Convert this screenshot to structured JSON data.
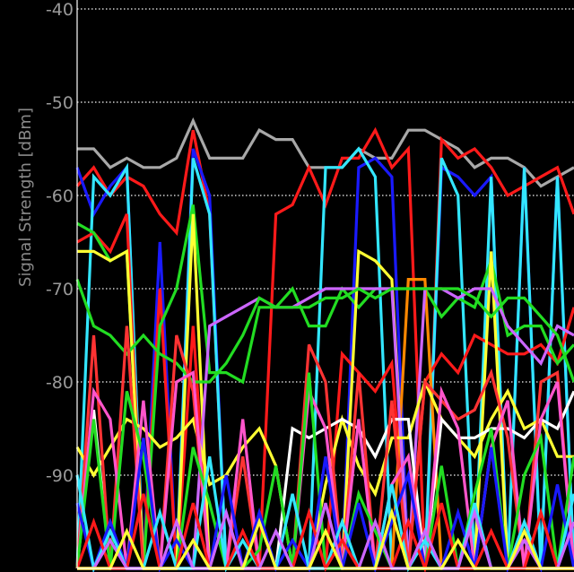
{
  "chart_data": {
    "type": "line",
    "title": "",
    "ylabel": "Signal Strength [dBm]",
    "xlabel": "",
    "ylim": [
      -100,
      -40
    ],
    "yticks": [
      -40,
      -50,
      -60,
      -70,
      -80,
      -90
    ],
    "grid": true,
    "background": "#000000",
    "gridColor": "#cfcfcf",
    "x": [
      0,
      1,
      2,
      3,
      4,
      5,
      6,
      7,
      8,
      9,
      10,
      11,
      12,
      13,
      14,
      15,
      16,
      17,
      18,
      19,
      20,
      21,
      22,
      23,
      24,
      25,
      26,
      27,
      28,
      29,
      30
    ],
    "series": [
      {
        "color": "#a8a8a8",
        "values": [
          -55,
          -55,
          -57,
          -56,
          -57,
          -57,
          -56,
          -52,
          -56,
          -56,
          -56,
          -53,
          -54,
          -54,
          -57,
          -57,
          -57,
          -55,
          -56,
          -56,
          -53,
          -53,
          -54,
          -55,
          -57,
          -56,
          -56,
          -57,
          -59,
          -58,
          -57
        ]
      },
      {
        "color": "#ff1a1a",
        "values": [
          -59,
          -57,
          -60,
          -58,
          -59,
          -62,
          -64,
          -53,
          -62,
          -100,
          -100,
          -100,
          -62,
          -61,
          -57,
          -61,
          -56,
          -56,
          -53,
          -57,
          -55,
          -100,
          -54,
          -56,
          -55,
          -57,
          -60,
          -59,
          -58,
          -57,
          -62
        ]
      },
      {
        "color": "#1a1aff",
        "values": [
          -57,
          -62,
          -59,
          -57,
          -100,
          -65,
          -100,
          -55,
          -60,
          -100,
          -100,
          -100,
          -100,
          -100,
          -100,
          -100,
          -100,
          -57,
          -56,
          -58,
          -100,
          -100,
          -57,
          -58,
          -60,
          -58,
          -100,
          -57,
          -100,
          -58,
          -100
        ]
      },
      {
        "color": "#33e6ff",
        "values": [
          -100,
          -58,
          -60,
          -57,
          -100,
          -100,
          -100,
          -56,
          -62,
          -100,
          -100,
          -100,
          -100,
          -100,
          -100,
          -57,
          -57,
          -55,
          -58,
          -100,
          -100,
          -100,
          -56,
          -60,
          -100,
          -58,
          -100,
          -57,
          -100,
          -58,
          -100
        ]
      },
      {
        "color": "#ff1a1a",
        "values": [
          -65,
          -64,
          -66,
          -62,
          -100,
          -70,
          -100,
          -74,
          -100,
          -100,
          -100,
          -100,
          -100,
          -100,
          -100,
          -100,
          -77,
          -79,
          -81,
          -78,
          -100,
          -80,
          -77,
          -79,
          -75,
          -76,
          -77,
          -77,
          -76,
          -78,
          -72
        ]
      },
      {
        "color": "#22dd22",
        "values": [
          -63,
          -64,
          -67,
          -66,
          -100,
          -74,
          -70,
          -61,
          -79,
          -79,
          -80,
          -72,
          -72,
          -70,
          -74,
          -74,
          -70,
          -72,
          -70,
          -70,
          -70,
          -70,
          -73,
          -71,
          -72,
          -67,
          -75,
          -74,
          -74,
          -78,
          -76
        ]
      },
      {
        "color": "#ffff33",
        "values": [
          -66,
          -66,
          -67,
          -66,
          -100,
          -100,
          -100,
          -62,
          -100,
          -100,
          -100,
          -100,
          -100,
          -100,
          -100,
          -100,
          -100,
          -66,
          -67,
          -69,
          -100,
          -100,
          -100,
          -100,
          -100,
          -66,
          -100,
          -100,
          -100,
          -100,
          -100
        ]
      },
      {
        "color": "#ff8800",
        "values": [
          -100,
          -100,
          -100,
          -100,
          -100,
          -100,
          -100,
          -100,
          -100,
          -100,
          -100,
          -100,
          -100,
          -100,
          -100,
          -100,
          -100,
          -100,
          -100,
          -100,
          -69,
          -69,
          -100,
          -100,
          -100,
          -100,
          -100,
          -100,
          -100,
          -100,
          -100
        ]
      },
      {
        "color": "#cc66ff",
        "values": [
          -100,
          -100,
          -100,
          -100,
          -100,
          -100,
          -100,
          -100,
          -74,
          -73,
          -72,
          -71,
          -72,
          -72,
          -71,
          -70,
          -70,
          -70,
          -70,
          -70,
          -100,
          -70,
          -70,
          -71,
          -70,
          -70,
          -74,
          -76,
          -78,
          -74,
          -75
        ]
      },
      {
        "color": "#22dd22",
        "values": [
          -69,
          -74,
          -75,
          -77,
          -75,
          -77,
          -78,
          -80,
          -80,
          -78,
          -75,
          -71,
          -72,
          -72,
          -72,
          -71,
          -71,
          -70,
          -71,
          -70,
          -70,
          -70,
          -70,
          -70,
          -71,
          -73,
          -71,
          -71,
          -73,
          -75,
          -80
        ]
      },
      {
        "color": "#ffff33",
        "values": [
          -87,
          -90,
          -87,
          -84,
          -85,
          -87,
          -86,
          -84,
          -91,
          -90,
          -87,
          -85,
          -89,
          -100,
          -100,
          -91,
          -84,
          -89,
          -92,
          -86,
          -86,
          -80,
          -84,
          -86,
          -88,
          -84,
          -81,
          -85,
          -84,
          -88,
          -88
        ]
      },
      {
        "color": "#ffffff",
        "values": [
          -100,
          -83,
          -100,
          -100,
          -100,
          -100,
          -100,
          -100,
          -100,
          -100,
          -100,
          -100,
          -100,
          -85,
          -86,
          -85,
          -84,
          -85,
          -88,
          -84,
          -84,
          -100,
          -84,
          -86,
          -86,
          -85,
          -85,
          -86,
          -84,
          -85,
          -81
        ]
      },
      {
        "color": "#ff3333",
        "values": [
          -100,
          -75,
          -100,
          -74,
          -100,
          -100,
          -75,
          -81,
          -100,
          -100,
          -88,
          -100,
          -100,
          -100,
          -76,
          -80,
          -100,
          -79,
          -100,
          -82,
          -100,
          -80,
          -82,
          -84,
          -83,
          -79,
          -86,
          -100,
          -80,
          -79,
          -100
        ]
      },
      {
        "color": "#ff55cc",
        "values": [
          -100,
          -81,
          -84,
          -100,
          -82,
          -100,
          -80,
          -79,
          -100,
          -100,
          -84,
          -100,
          -100,
          -100,
          -81,
          -85,
          -100,
          -84,
          -100,
          -91,
          -88,
          -100,
          -81,
          -85,
          -100,
          -87,
          -82,
          -100,
          -84,
          -80,
          -100
        ]
      },
      {
        "color": "#22dd22",
        "values": [
          -100,
          -84,
          -100,
          -81,
          -88,
          -100,
          -100,
          -87,
          -93,
          -100,
          -100,
          -98,
          -89,
          -100,
          -79,
          -100,
          -100,
          -92,
          -96,
          -100,
          -100,
          -100,
          -89,
          -100,
          -92,
          -85,
          -100,
          -90,
          -86,
          -100,
          -88
        ]
      },
      {
        "color": "#1a1aff",
        "values": [
          -93,
          -100,
          -95,
          -100,
          -86,
          -100,
          -97,
          -100,
          -100,
          -90,
          -100,
          -94,
          -100,
          -97,
          -100,
          -88,
          -100,
          -93,
          -100,
          -95,
          -90,
          -100,
          -100,
          -94,
          -100,
          -87,
          -100,
          -96,
          -100,
          -91,
          -100
        ]
      },
      {
        "color": "#33e6ff",
        "values": [
          -90,
          -100,
          -96,
          -100,
          -100,
          -94,
          -100,
          -100,
          -88,
          -100,
          -97,
          -100,
          -100,
          -92,
          -100,
          -100,
          -95,
          -100,
          -100,
          -91,
          -100,
          -97,
          -100,
          -100,
          -93,
          -100,
          -100,
          -95,
          -100,
          -100,
          -92
        ]
      },
      {
        "color": "#ff1a1a",
        "values": [
          -100,
          -95,
          -100,
          -100,
          -92,
          -100,
          -100,
          -93,
          -100,
          -100,
          -96,
          -100,
          -100,
          -100,
          -94,
          -100,
          -97,
          -100,
          -100,
          -100,
          -95,
          -100,
          -93,
          -100,
          -100,
          -96,
          -100,
          -100,
          -94,
          -100,
          -100
        ]
      },
      {
        "color": "#cc66ff",
        "values": [
          -100,
          -100,
          -97,
          -100,
          -100,
          -100,
          -95,
          -100,
          -100,
          -94,
          -100,
          -100,
          -96,
          -100,
          -100,
          -93,
          -100,
          -100,
          -95,
          -100,
          -100,
          -96,
          -100,
          -100,
          -94,
          -100,
          -100,
          -97,
          -100,
          -100,
          -95
        ]
      },
      {
        "color": "#ffff33",
        "values": [
          -100,
          -100,
          -100,
          -96,
          -100,
          -100,
          -100,
          -97,
          -100,
          -100,
          -100,
          -95,
          -100,
          -100,
          -100,
          -96,
          -100,
          -100,
          -100,
          -94,
          -100,
          -100,
          -100,
          -97,
          -100,
          -100,
          -100,
          -96,
          -100,
          -100,
          -100
        ]
      }
    ]
  }
}
